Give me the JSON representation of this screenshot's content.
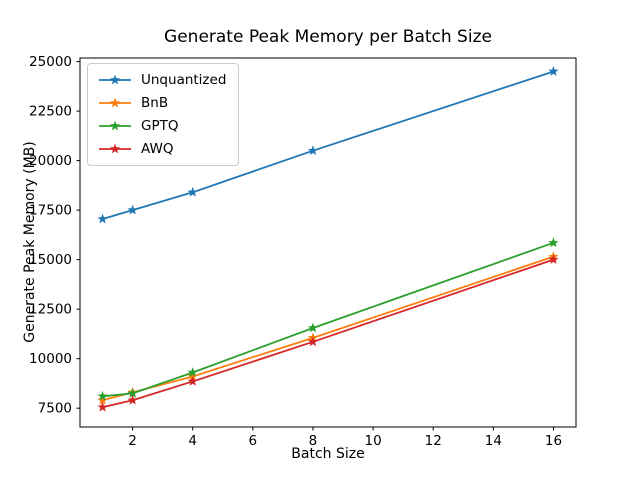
{
  "figure": {
    "background": "#ffffff",
    "axes_color": "#000000"
  },
  "chart_data": {
    "type": "line",
    "title": "Generate Peak Memory per Batch Size",
    "xlabel": "Batch Size",
    "ylabel": "Generate Peak Memory (MB)",
    "x": [
      1,
      2,
      4,
      8,
      16
    ],
    "series": [
      {
        "name": "Unquantized",
        "color": "#1f77b4",
        "values": [
          17050,
          17500,
          18400,
          20500,
          24500
        ]
      },
      {
        "name": "BnB",
        "color": "#ff7f0e",
        "values": [
          7900,
          8300,
          9100,
          11050,
          15150
        ]
      },
      {
        "name": "GPTQ",
        "color": "#2ca02c",
        "values": [
          8100,
          8250,
          9300,
          11550,
          15850
        ]
      },
      {
        "name": "AWQ",
        "color": "#d62728",
        "values": [
          7550,
          7900,
          8850,
          10850,
          15000
        ]
      }
    ],
    "marker": "star",
    "xticks": [
      2,
      4,
      6,
      8,
      10,
      12,
      14,
      16
    ],
    "yticks": [
      7500,
      10000,
      12500,
      15000,
      17500,
      20000,
      22500,
      25000
    ],
    "xlim": [
      0.25,
      16.75
    ],
    "ylim": [
      6550,
      25180
    ],
    "grid": false,
    "legend_position": "upper-left"
  }
}
